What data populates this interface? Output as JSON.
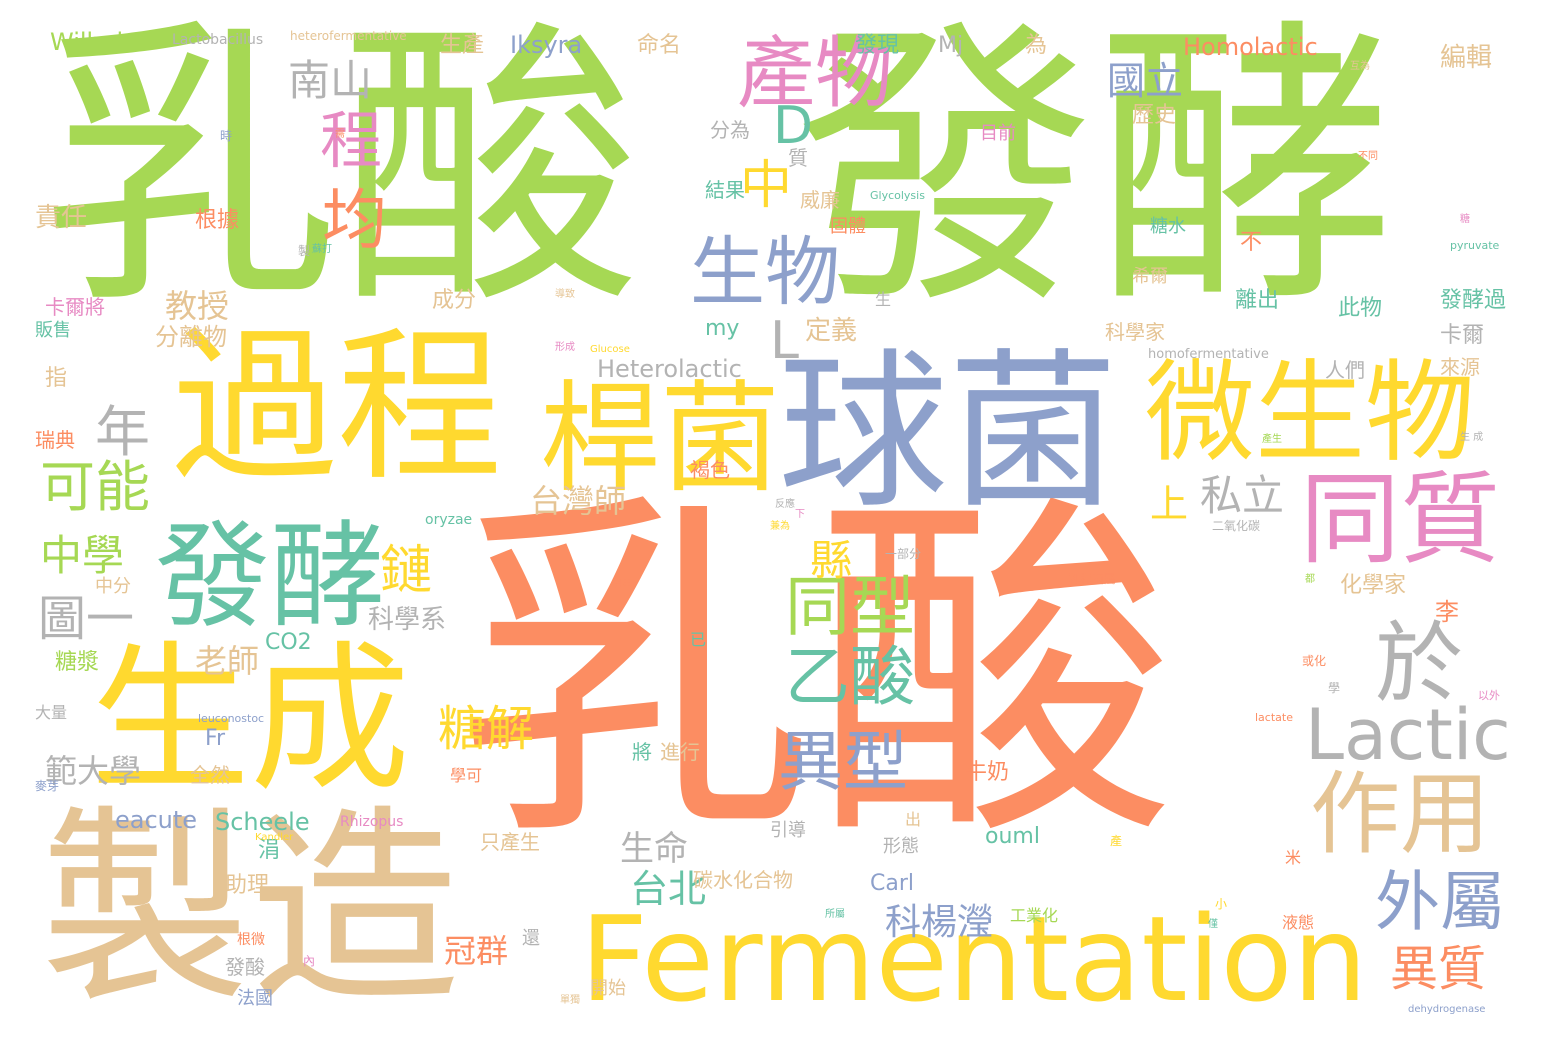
{
  "colors": {
    "green": "#a6d854",
    "orange": "#fc8d62",
    "blue": "#8da0cb",
    "pink": "#e78ac3",
    "yellow": "#ffd92f",
    "tan": "#e5c494",
    "gray": "#b3b3b3",
    "teal": "#66c2a5"
  },
  "words": [
    {
      "text": "乳酸",
      "color": "green"
    },
    {
      "text": "發酵",
      "color": "green"
    },
    {
      "text": "乳酸",
      "color": "orange"
    },
    {
      "text": "過程",
      "color": "yellow"
    },
    {
      "text": "球菌",
      "color": "blue"
    },
    {
      "text": "生成",
      "color": "yellow"
    },
    {
      "text": "製造",
      "color": "tan"
    },
    {
      "text": "Fermentation",
      "color": "yellow"
    },
    {
      "text": "桿菌",
      "color": "yellow"
    },
    {
      "text": "微生物",
      "color": "yellow"
    },
    {
      "text": "發酵",
      "color": "teal"
    },
    {
      "text": "產物",
      "color": "pink"
    },
    {
      "text": "生物",
      "color": "blue"
    },
    {
      "text": "同質",
      "color": "pink"
    },
    {
      "text": "Lactic",
      "color": "gray"
    },
    {
      "text": "作用",
      "color": "tan"
    },
    {
      "text": "外屬",
      "color": "blue"
    },
    {
      "text": "異型",
      "color": "blue"
    },
    {
      "text": "乙酸",
      "color": "teal"
    },
    {
      "text": "同型",
      "color": "green"
    },
    {
      "text": "於",
      "color": "gray"
    },
    {
      "text": "程",
      "color": "pink"
    },
    {
      "text": "均",
      "color": "orange"
    },
    {
      "text": "D",
      "color": "teal"
    },
    {
      "text": "中",
      "color": "yellow"
    },
    {
      "text": "年",
      "color": "gray"
    },
    {
      "text": "可能",
      "color": "green"
    },
    {
      "text": "南山",
      "color": "gray"
    },
    {
      "text": "圖一",
      "color": "gray"
    },
    {
      "text": "中學",
      "color": "green"
    },
    {
      "text": "鏈",
      "color": "yellow"
    },
    {
      "text": "糖解",
      "color": "yellow"
    },
    {
      "text": "異質",
      "color": "orange"
    },
    {
      "text": "台北",
      "color": "teal"
    },
    {
      "text": "私立",
      "color": "gray"
    },
    {
      "text": "台灣師",
      "color": "tan"
    },
    {
      "text": "縣",
      "color": "yellow"
    },
    {
      "text": "上",
      "color": "yellow"
    },
    {
      "text": "國立",
      "color": "blue"
    },
    {
      "text": "科楊瀅",
      "color": "blue"
    },
    {
      "text": "範大學",
      "color": "gray"
    },
    {
      "text": "教授",
      "color": "tan"
    },
    {
      "text": "老師",
      "color": "tan"
    },
    {
      "text": "生命",
      "color": "gray"
    },
    {
      "text": "冠群",
      "color": "orange"
    },
    {
      "text": "Homolactic",
      "color": "orange"
    },
    {
      "text": "Heterolactic",
      "color": "gray"
    },
    {
      "text": "Scheele",
      "color": "teal"
    },
    {
      "text": "eacute",
      "color": "blue"
    },
    {
      "text": "Wilhelm",
      "color": "green"
    },
    {
      "text": "Iksyra",
      "color": "blue"
    },
    {
      "text": "ouml",
      "color": "teal"
    },
    {
      "text": "Carl",
      "color": "blue"
    },
    {
      "text": "CO2",
      "color": "teal"
    },
    {
      "text": "Fr",
      "color": "blue"
    },
    {
      "text": "my",
      "color": "teal"
    },
    {
      "text": "Mj",
      "color": "gray"
    },
    {
      "text": "L",
      "color": "gray"
    },
    {
      "text": "生產",
      "color": "tan"
    },
    {
      "text": "命名",
      "color": "tan"
    },
    {
      "text": "發現",
      "color": "teal"
    },
    {
      "text": "為",
      "color": "tan"
    },
    {
      "text": "編輯",
      "color": "tan"
    },
    {
      "text": "責任",
      "color": "tan"
    },
    {
      "text": "根據",
      "color": "orange"
    },
    {
      "text": "卡爾將",
      "color": "pink"
    },
    {
      "text": "販售",
      "color": "teal"
    },
    {
      "text": "分離物",
      "color": "tan"
    },
    {
      "text": "指",
      "color": "tan"
    },
    {
      "text": "瑞典",
      "color": "orange"
    },
    {
      "text": "科學系",
      "color": "gray"
    },
    {
      "text": "分為",
      "color": "gray"
    },
    {
      "text": "結果",
      "color": "teal"
    },
    {
      "text": "威廉",
      "color": "tan"
    },
    {
      "text": "固體",
      "color": "orange"
    },
    {
      "text": "定義",
      "color": "tan"
    },
    {
      "text": "成分",
      "color": "tan"
    },
    {
      "text": "科學家",
      "color": "tan"
    },
    {
      "text": "離出",
      "color": "teal"
    },
    {
      "text": "此物",
      "color": "teal"
    },
    {
      "text": "發酵過",
      "color": "teal"
    },
    {
      "text": "卡爾",
      "color": "gray"
    },
    {
      "text": "來源",
      "color": "tan"
    },
    {
      "text": "人們",
      "color": "gray"
    },
    {
      "text": "歷史",
      "color": "tan"
    },
    {
      "text": "目前",
      "color": "pink"
    },
    {
      "text": "糖水",
      "color": "teal"
    },
    {
      "text": "希爾",
      "color": "tan"
    },
    {
      "text": "化學家",
      "color": "tan"
    },
    {
      "text": "李",
      "color": "orange"
    },
    {
      "text": "質",
      "color": "gray"
    },
    {
      "text": "不",
      "color": "orange"
    },
    {
      "text": "褐色",
      "color": "orange"
    },
    {
      "text": "糖漿",
      "color": "green"
    },
    {
      "text": "中分",
      "color": "tan"
    },
    {
      "text": "大量",
      "color": "gray"
    },
    {
      "text": "助理",
      "color": "tan"
    },
    {
      "text": "涓",
      "color": "teal"
    },
    {
      "text": "全然",
      "color": "tan"
    },
    {
      "text": "將",
      "color": "teal"
    },
    {
      "text": "進行",
      "color": "tan"
    },
    {
      "text": "學可",
      "color": "orange"
    },
    {
      "text": "牛奶",
      "color": "orange"
    },
    {
      "text": "引導",
      "color": "gray"
    },
    {
      "text": "形態",
      "color": "gray"
    },
    {
      "text": "只產生",
      "color": "tan"
    },
    {
      "text": "碳水化合物",
      "color": "tan"
    },
    {
      "text": "工業化",
      "color": "green"
    },
    {
      "text": "液態",
      "color": "orange"
    },
    {
      "text": "發酸",
      "color": "gray"
    },
    {
      "text": "法國",
      "color": "blue"
    },
    {
      "text": "開始",
      "color": "tan"
    },
    {
      "text": "還",
      "color": "gray"
    },
    {
      "text": "出",
      "color": "tan"
    },
    {
      "text": "米",
      "color": "orange"
    },
    {
      "text": "已",
      "color": "teal"
    },
    {
      "text": "生",
      "color": "gray"
    },
    {
      "text": "Lactobacillus",
      "color": "gray"
    },
    {
      "text": "heterofermentative",
      "color": "tan"
    },
    {
      "text": "homofermentative",
      "color": "gray"
    },
    {
      "text": "pyruvate",
      "color": "teal"
    },
    {
      "text": "Glycolysis",
      "color": "teal"
    },
    {
      "text": "oryzae",
      "color": "teal"
    },
    {
      "text": "leuconostoc",
      "color": "blue"
    },
    {
      "text": "Rhizopus",
      "color": "pink"
    },
    {
      "text": "Glucose",
      "color": "yellow"
    },
    {
      "text": "lactate",
      "color": "orange"
    },
    {
      "text": "dehydrogenase",
      "color": "blue"
    },
    {
      "text": "Kandler",
      "color": "yellow"
    },
    {
      "text": "二氧化碳",
      "color": "gray"
    },
    {
      "text": "乳桿菌屬",
      "color": "orange"
    },
    {
      "text": "製",
      "color": "gray"
    },
    {
      "text": "互為",
      "color": "tan"
    },
    {
      "text": "不同",
      "color": "orange"
    },
    {
      "text": "以外",
      "color": "pink"
    },
    {
      "text": "或化",
      "color": "orange"
    },
    {
      "text": "學",
      "color": "gray"
    },
    {
      "text": "都",
      "color": "green"
    },
    {
      "text": "小",
      "color": "yellow"
    },
    {
      "text": "僅",
      "color": "teal"
    },
    {
      "text": "產",
      "color": "yellow"
    },
    {
      "text": "糖",
      "color": "pink"
    },
    {
      "text": "麥芽",
      "color": "blue"
    },
    {
      "text": "時",
      "color": "blue"
    },
    {
      "text": "需",
      "color": "orange"
    },
    {
      "text": "內",
      "color": "pink"
    },
    {
      "text": "根微",
      "color": "orange"
    },
    {
      "text": "一部分",
      "color": "gray"
    },
    {
      "text": "明串",
      "color": "orange"
    },
    {
      "text": "反應",
      "color": "gray"
    },
    {
      "text": "下",
      "color": "pink"
    },
    {
      "text": "兼為",
      "color": "yellow"
    },
    {
      "text": "導致",
      "color": "tan"
    },
    {
      "text": "形成",
      "color": "pink"
    },
    {
      "text": "蘇打",
      "color": "teal"
    },
    {
      "text": "產生",
      "color": "green"
    },
    {
      "text": "所屬",
      "color": "teal"
    },
    {
      "text": "單獨",
      "color": "tan"
    },
    {
      "text": "生 成",
      "color": "gray"
    }
  ]
}
